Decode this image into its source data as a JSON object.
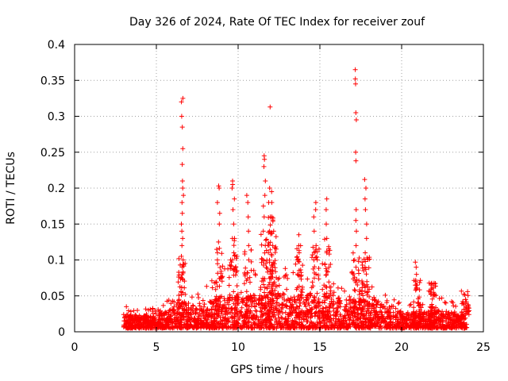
{
  "chart_data": {
    "type": "scatter",
    "title": "Day 326 of 2024, Rate Of TEC Index for receiver zouf",
    "xlabel": "GPS time / hours",
    "ylabel": "ROTI / TECUs",
    "xlim": [
      0,
      25
    ],
    "ylim": [
      0,
      0.4
    ],
    "xticks": [
      0,
      5,
      10,
      15,
      20,
      25
    ],
    "yticks": [
      0,
      0.05,
      0.1,
      0.15,
      0.2,
      0.25,
      0.3,
      0.35,
      0.4
    ],
    "xtick_labels": [
      "0",
      "5",
      "10",
      "15",
      "20",
      "25"
    ],
    "ytick_labels": [
      "0",
      "0.05",
      "0.1",
      "0.15",
      "0.2",
      "0.25",
      "0.3",
      "0.35",
      "0.4"
    ],
    "grid": true,
    "marker": "+",
    "series": [
      {
        "name": "ROTI",
        "color": "#ff0000",
        "x_range": [
          3.0,
          24.0
        ],
        "baseline": [
          [
            3.0,
            0.02
          ],
          [
            4.0,
            0.018
          ],
          [
            5.0,
            0.018
          ],
          [
            5.8,
            0.025
          ],
          [
            6.5,
            0.04
          ],
          [
            7.5,
            0.03
          ],
          [
            8.5,
            0.04
          ],
          [
            9.5,
            0.05
          ],
          [
            10.5,
            0.045
          ],
          [
            11.5,
            0.05
          ],
          [
            12.5,
            0.05
          ],
          [
            13.5,
            0.045
          ],
          [
            14.5,
            0.05
          ],
          [
            15.5,
            0.05
          ],
          [
            16.5,
            0.04
          ],
          [
            17.5,
            0.04
          ],
          [
            18.5,
            0.035
          ],
          [
            19.5,
            0.025
          ],
          [
            20.5,
            0.02
          ],
          [
            21.5,
            0.025
          ],
          [
            22.5,
            0.025
          ],
          [
            23.5,
            0.02
          ],
          [
            24.0,
            0.02
          ]
        ],
        "peaks": [
          {
            "x": 6.6,
            "values": [
              0.325,
              0.32,
              0.3,
              0.285,
              0.255,
              0.233,
              0.21,
              0.2,
              0.19,
              0.18,
              0.165,
              0.15,
              0.14,
              0.13,
              0.12,
              0.1,
              0.09
            ]
          },
          {
            "x": 8.8,
            "values": [
              0.203,
              0.2,
              0.18,
              0.165,
              0.15,
              0.125,
              0.11,
              0.1
            ]
          },
          {
            "x": 9.7,
            "values": [
              0.21,
              0.205,
              0.2,
              0.185,
              0.17,
              0.15,
              0.13,
              0.11
            ]
          },
          {
            "x": 10.6,
            "values": [
              0.19,
              0.18,
              0.16,
              0.14,
              0.12,
              0.1
            ]
          },
          {
            "x": 11.6,
            "values": [
              0.245,
              0.24,
              0.23,
              0.21,
              0.19,
              0.175,
              0.16,
              0.14,
              0.12
            ]
          },
          {
            "x": 11.9,
            "values": [
              0.313,
              0.2,
              0.18,
              0.16,
              0.14
            ]
          },
          {
            "x": 12.1,
            "values": [
              0.195,
              0.18,
              0.16,
              0.14,
              0.12
            ]
          },
          {
            "x": 13.7,
            "values": [
              0.135,
              0.12,
              0.11,
              0.1
            ]
          },
          {
            "x": 14.7,
            "values": [
              0.18,
              0.17,
              0.16,
              0.14,
              0.12,
              0.1
            ]
          },
          {
            "x": 15.4,
            "values": [
              0.185,
              0.17,
              0.15,
              0.13,
              0.11
            ]
          },
          {
            "x": 17.2,
            "values": [
              0.365,
              0.352,
              0.345,
              0.305,
              0.295,
              0.25,
              0.238,
              0.17,
              0.155,
              0.14,
              0.12,
              0.1,
              0.09
            ]
          },
          {
            "x": 17.8,
            "values": [
              0.212,
              0.2,
              0.185,
              0.17,
              0.15,
              0.13,
              0.11,
              0.09
            ]
          },
          {
            "x": 20.9,
            "values": [
              0.097,
              0.09,
              0.08,
              0.07,
              0.06
            ]
          },
          {
            "x": 21.9,
            "values": [
              0.055,
              0.05
            ]
          },
          {
            "x": 23.9,
            "values": [
              0.045,
              0.042
            ]
          }
        ]
      }
    ]
  }
}
